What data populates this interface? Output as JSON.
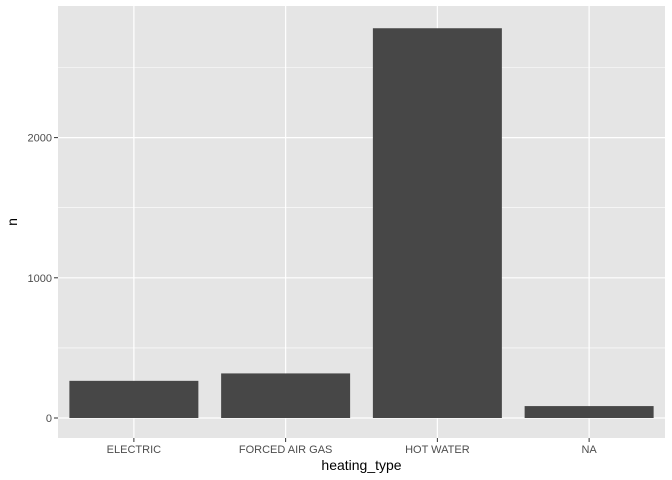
{
  "chart_data": {
    "type": "bar",
    "title": "",
    "xlabel": "heating_type",
    "ylabel": "n",
    "categories": [
      "ELECTRIC",
      "FORCED AIR GAS",
      "HOT WATER",
      "NA"
    ],
    "values": [
      265,
      318,
      2780,
      85
    ],
    "ylim": [
      0,
      2920
    ],
    "yticks": [
      0,
      1000,
      2000
    ],
    "ytick_labels": [
      "0",
      "1000",
      "2000"
    ],
    "grid": true,
    "legend": "none"
  },
  "colors": {
    "panel_background": "#e5e5e5",
    "grid_major": "#ffffff",
    "bar_fill": "#474747",
    "tick_text": "#4d4d4d",
    "title_text": "#000000"
  }
}
